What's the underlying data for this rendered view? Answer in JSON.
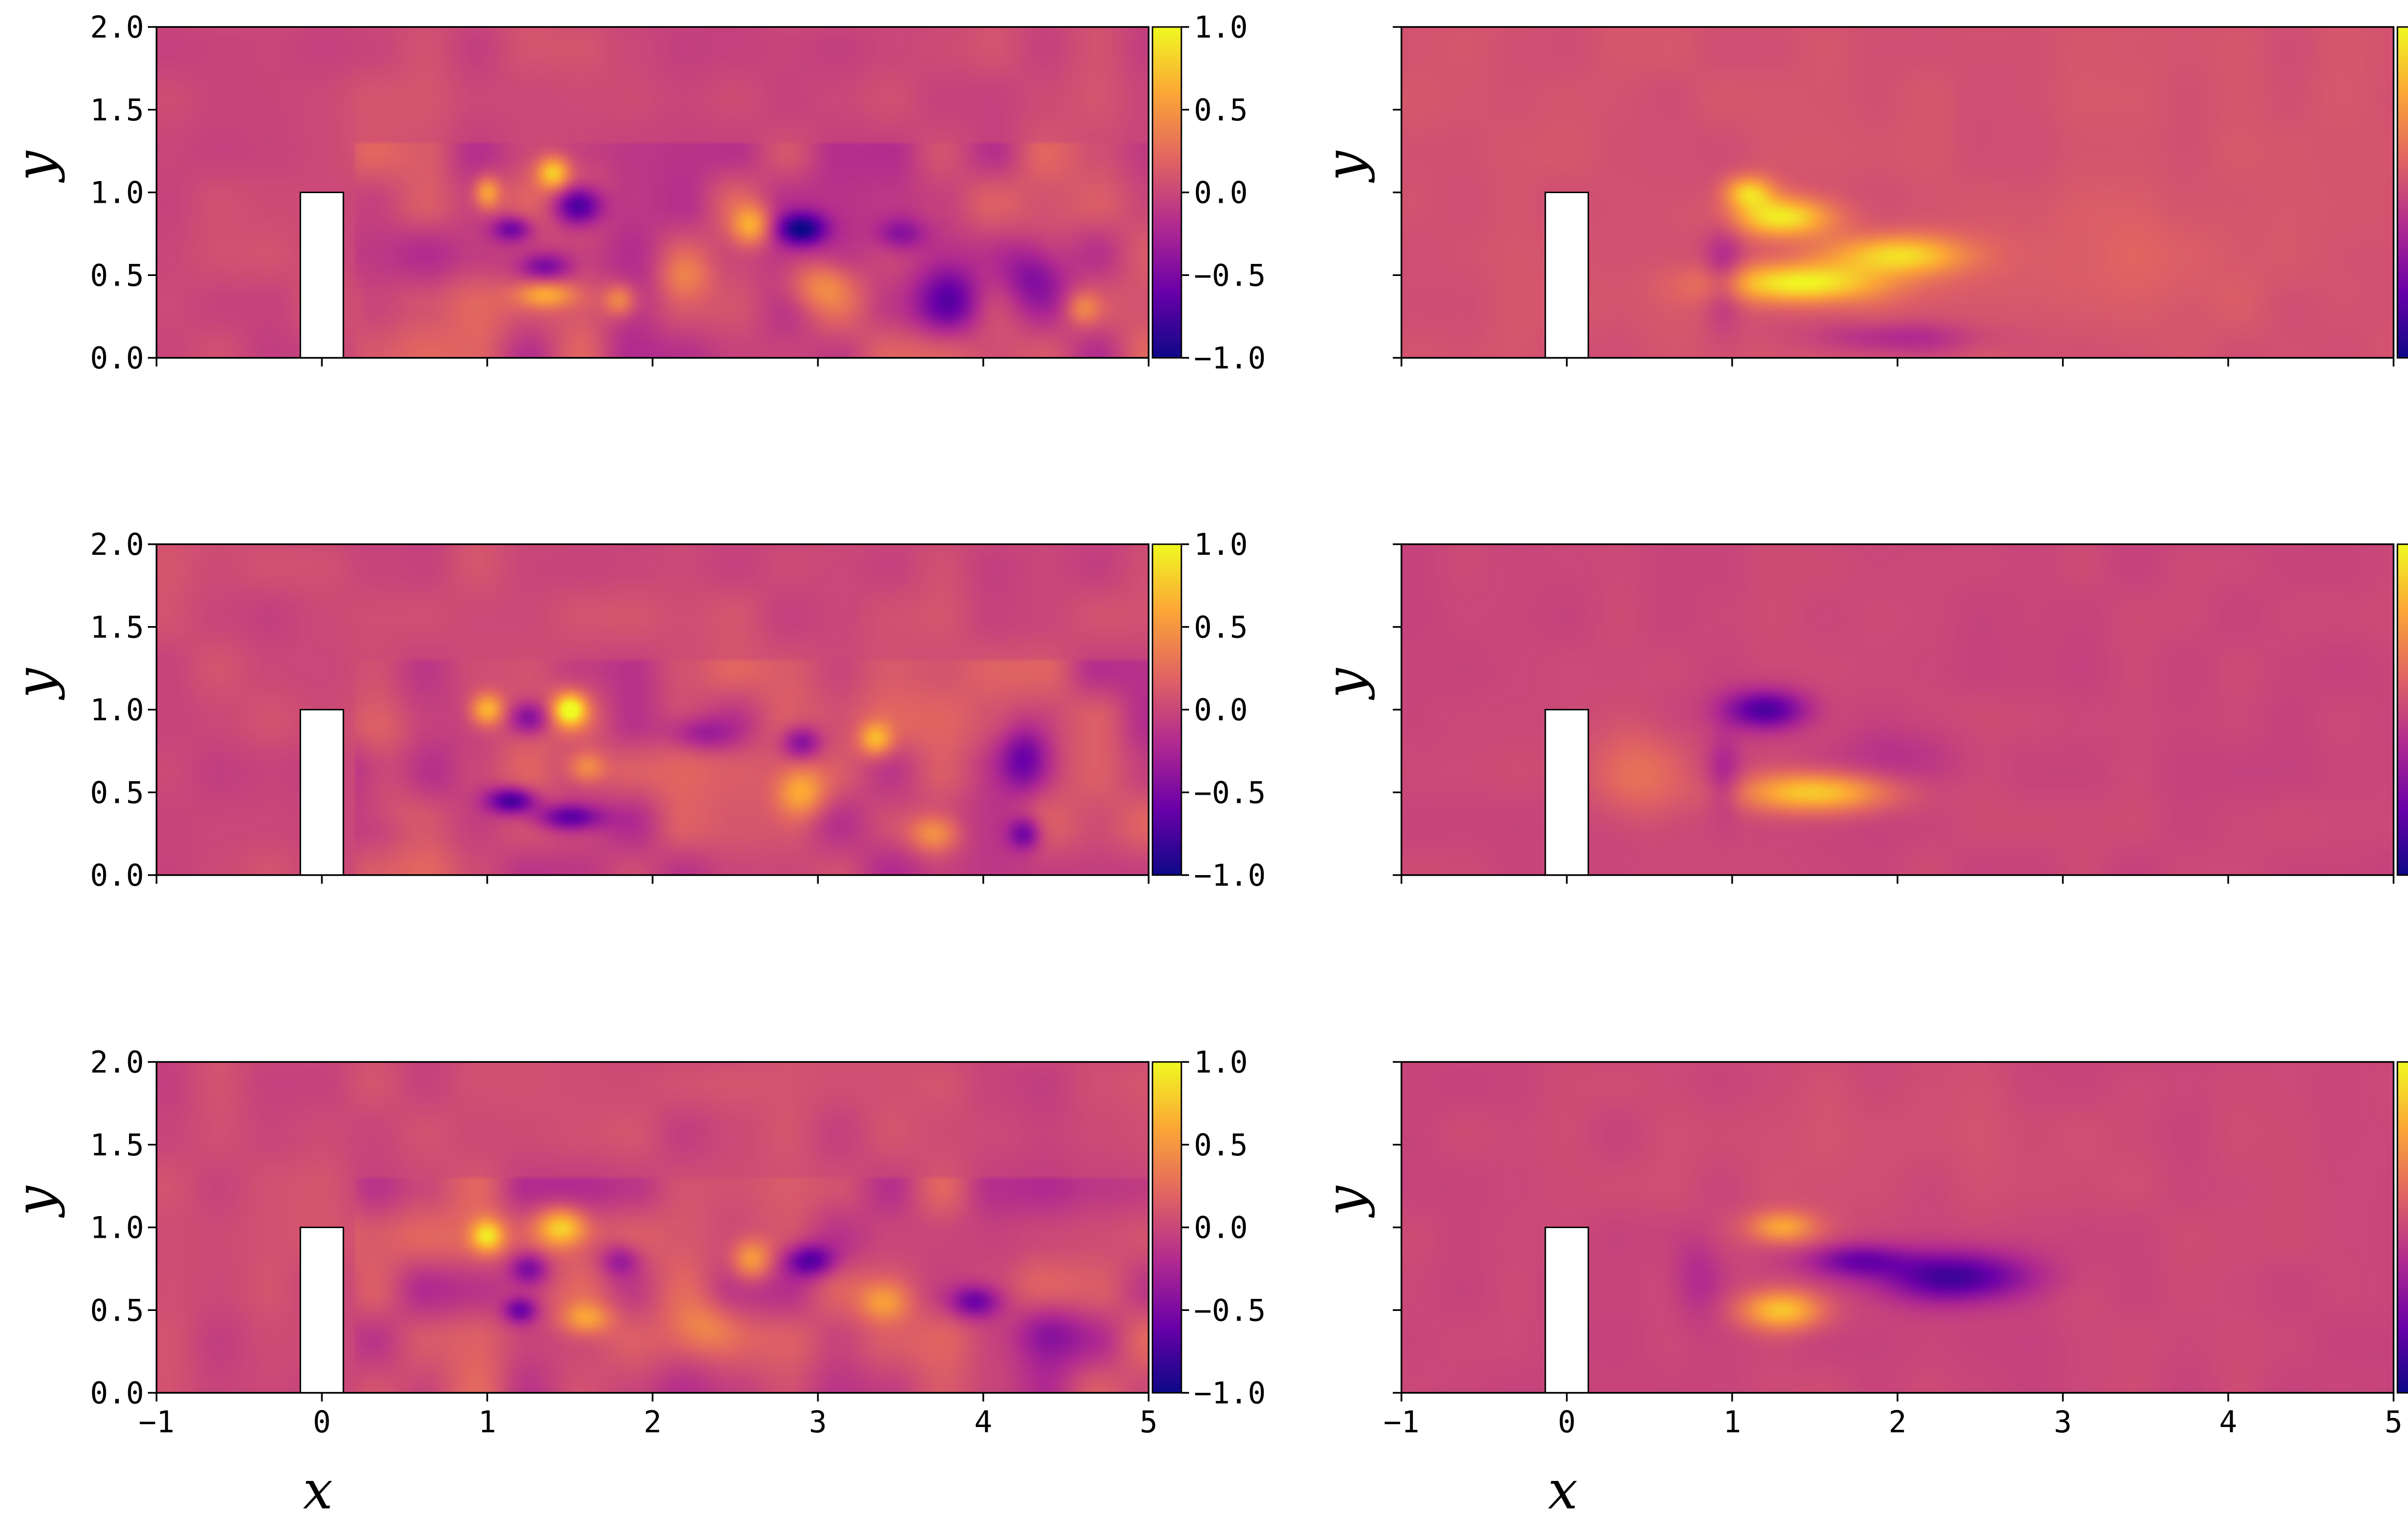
{
  "chart_data": {
    "type": "heatmap",
    "colormap": "plasma",
    "colormap_stops": [
      "#0d0887",
      "#6a00a8",
      "#b12a90",
      "#e16462",
      "#fca636",
      "#f0f921"
    ],
    "xlim": [
      -1,
      5
    ],
    "ylim": [
      0,
      2
    ],
    "clim": [
      -1,
      1
    ],
    "obstacle": {
      "x": [
        -0.13,
        0.13
      ],
      "y": [
        0,
        1
      ]
    },
    "x_ticks": [
      "−1",
      "0",
      "1",
      "2",
      "3",
      "4",
      "5"
    ],
    "y_ticks": [
      "0.0",
      "0.5",
      "1.0",
      "1.5",
      "2.0"
    ],
    "colorbar_ticks": [
      "−1.0",
      "−0.5",
      "0.0",
      "0.5",
      "1.0"
    ],
    "xlabel": "x",
    "ylabel": "y",
    "panels": [
      {
        "name": "row1-left",
        "row": 0,
        "col": 0,
        "background": 0.02,
        "blobs": [
          [
            1.55,
            0.92,
            0.15,
            0.12,
            -0.95
          ],
          [
            1.4,
            1.12,
            0.1,
            0.1,
            0.75
          ],
          [
            1.0,
            1.0,
            0.08,
            0.1,
            0.6
          ],
          [
            1.15,
            0.78,
            0.12,
            0.08,
            -0.6
          ],
          [
            1.35,
            0.38,
            0.18,
            0.08,
            0.55
          ],
          [
            1.35,
            0.55,
            0.15,
            0.08,
            -0.5
          ],
          [
            1.8,
            0.35,
            0.1,
            0.1,
            0.5
          ],
          [
            2.6,
            0.8,
            0.12,
            0.12,
            0.6
          ],
          [
            2.9,
            0.78,
            0.15,
            0.1,
            -0.9
          ],
          [
            3.0,
            0.45,
            0.2,
            0.15,
            0.4
          ],
          [
            3.5,
            0.75,
            0.15,
            0.1,
            -0.4
          ],
          [
            3.8,
            0.35,
            0.2,
            0.2,
            -0.55
          ],
          [
            4.3,
            0.5,
            0.2,
            0.2,
            -0.45
          ],
          [
            2.2,
            0.5,
            0.15,
            0.15,
            0.3
          ],
          [
            4.6,
            0.3,
            0.1,
            0.1,
            0.35
          ]
        ]
      },
      {
        "name": "row1-right",
        "row": 0,
        "col": 1,
        "background": 0.08,
        "blobs": [
          [
            1.3,
            0.85,
            0.3,
            0.12,
            0.85
          ],
          [
            1.4,
            0.45,
            0.5,
            0.12,
            0.9
          ],
          [
            2.0,
            0.62,
            0.4,
            0.12,
            0.75
          ],
          [
            1.1,
            1.0,
            0.15,
            0.1,
            0.7
          ],
          [
            0.95,
            0.5,
            0.12,
            0.3,
            -0.35
          ],
          [
            2.0,
            0.12,
            0.5,
            0.1,
            -0.3
          ],
          [
            3.2,
            0.6,
            1.0,
            0.4,
            0.1
          ]
        ]
      },
      {
        "name": "row2-left",
        "row": 1,
        "col": 0,
        "background": 0.02,
        "blobs": [
          [
            1.5,
            1.0,
            0.1,
            0.1,
            1.0
          ],
          [
            1.0,
            1.0,
            0.1,
            0.1,
            0.7
          ],
          [
            1.25,
            0.95,
            0.12,
            0.1,
            -0.55
          ],
          [
            1.15,
            0.45,
            0.15,
            0.08,
            -0.85
          ],
          [
            1.5,
            0.35,
            0.2,
            0.08,
            -0.7
          ],
          [
            1.6,
            0.65,
            0.12,
            0.1,
            0.5
          ],
          [
            2.9,
            0.8,
            0.12,
            0.1,
            -0.55
          ],
          [
            3.35,
            0.82,
            0.1,
            0.1,
            0.6
          ],
          [
            2.9,
            0.5,
            0.15,
            0.15,
            0.55
          ],
          [
            3.7,
            0.25,
            0.15,
            0.12,
            0.5
          ],
          [
            4.25,
            0.7,
            0.15,
            0.2,
            -0.6
          ],
          [
            4.25,
            0.25,
            0.1,
            0.1,
            -0.6
          ],
          [
            2.3,
            0.85,
            0.2,
            0.1,
            -0.35
          ],
          [
            0.4,
            0.6,
            0.2,
            0.3,
            0.2
          ]
        ]
      },
      {
        "name": "row2-right",
        "row": 1,
        "col": 1,
        "background": 0.0,
        "blobs": [
          [
            1.2,
            1.0,
            0.25,
            0.12,
            -0.75
          ],
          [
            1.5,
            0.5,
            0.45,
            0.12,
            0.8
          ],
          [
            0.45,
            0.6,
            0.3,
            0.3,
            0.25
          ],
          [
            0.95,
            0.6,
            0.1,
            0.25,
            -0.25
          ],
          [
            2.0,
            0.7,
            0.4,
            0.2,
            -0.15
          ]
        ]
      },
      {
        "name": "row3-left",
        "row": 2,
        "col": 0,
        "background": 0.02,
        "blobs": [
          [
            1.0,
            0.95,
            0.1,
            0.1,
            0.75
          ],
          [
            1.45,
            1.0,
            0.15,
            0.12,
            0.75
          ],
          [
            1.25,
            0.75,
            0.12,
            0.1,
            -0.55
          ],
          [
            1.2,
            0.5,
            0.1,
            0.08,
            -0.6
          ],
          [
            1.6,
            0.45,
            0.15,
            0.1,
            0.5
          ],
          [
            2.6,
            0.8,
            0.12,
            0.12,
            0.55
          ],
          [
            2.95,
            0.8,
            0.15,
            0.1,
            -0.7
          ],
          [
            3.4,
            0.55,
            0.15,
            0.12,
            0.45
          ],
          [
            3.95,
            0.55,
            0.15,
            0.1,
            -0.6
          ],
          [
            4.4,
            0.35,
            0.2,
            0.2,
            -0.4
          ],
          [
            1.8,
            0.8,
            0.12,
            0.1,
            -0.4
          ],
          [
            2.3,
            0.4,
            0.2,
            0.15,
            0.3
          ]
        ]
      },
      {
        "name": "row3-right",
        "row": 2,
        "col": 1,
        "background": 0.0,
        "blobs": [
          [
            1.3,
            0.5,
            0.25,
            0.12,
            0.75
          ],
          [
            1.3,
            1.0,
            0.2,
            0.1,
            0.6
          ],
          [
            2.35,
            0.7,
            0.45,
            0.15,
            -0.8
          ],
          [
            1.75,
            0.8,
            0.3,
            0.1,
            -0.55
          ],
          [
            0.8,
            0.7,
            0.15,
            0.25,
            -0.2
          ],
          [
            2.0,
            1.5,
            1.5,
            0.6,
            0.05
          ]
        ]
      }
    ]
  }
}
